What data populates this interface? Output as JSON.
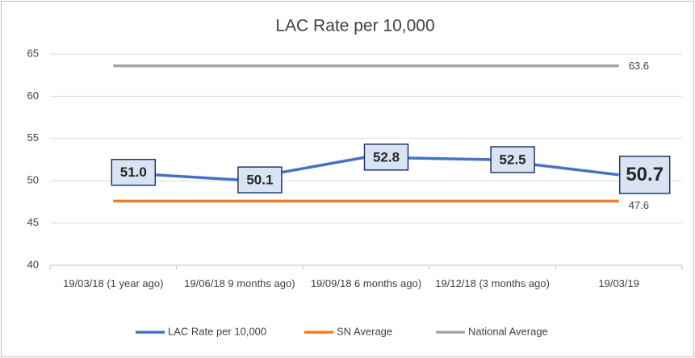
{
  "chart_data": {
    "type": "line",
    "title": "LAC Rate per 10,000",
    "categories": [
      "19/03/18 (1 year ago)",
      "19/06/18 9 months ago)",
      "19/09/18 6 months ago)",
      "19/12/18 (3 months ago)",
      "19/03/19"
    ],
    "series": [
      {
        "name": "LAC Rate per 10,000",
        "color": "#4472c4",
        "values": [
          51.0,
          50.1,
          52.8,
          52.5,
          50.7
        ],
        "value_labels": [
          "51.0",
          "50.1",
          "52.8",
          "52.5",
          "50.7"
        ]
      },
      {
        "name": "SN Average",
        "color": "#ed7d31",
        "values": [
          47.6,
          47.6,
          47.6,
          47.6,
          47.6
        ],
        "value_labels": [
          null,
          null,
          null,
          null,
          "47.6"
        ]
      },
      {
        "name": "National Average",
        "color": "#a5a5a5",
        "values": [
          63.6,
          63.6,
          63.6,
          63.6,
          63.6
        ],
        "value_labels": [
          null,
          null,
          null,
          null,
          "63.6"
        ]
      }
    ],
    "ylim": [
      40,
      65
    ],
    "yticks": [
      40,
      45,
      50,
      55,
      60,
      65
    ],
    "grid": true,
    "legend": "bottom"
  }
}
